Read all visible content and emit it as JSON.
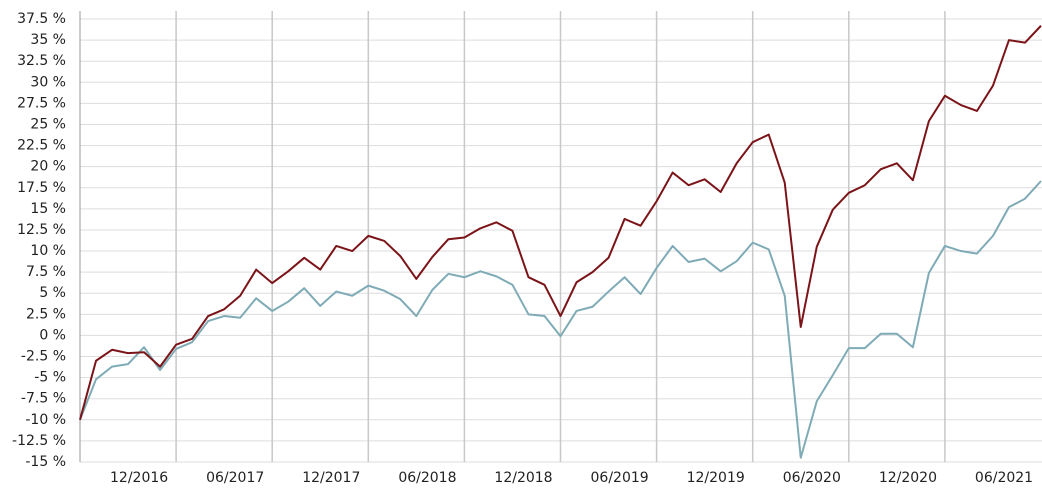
{
  "chart_data": {
    "type": "line",
    "x": [
      "06/2016",
      "07/2016",
      "08/2016",
      "09/2016",
      "10/2016",
      "11/2016",
      "12/2016",
      "01/2017",
      "02/2017",
      "03/2017",
      "04/2017",
      "05/2017",
      "06/2017",
      "07/2017",
      "08/2017",
      "09/2017",
      "10/2017",
      "11/2017",
      "12/2017",
      "01/2018",
      "02/2018",
      "03/2018",
      "04/2018",
      "05/2018",
      "06/2018",
      "07/2018",
      "08/2018",
      "09/2018",
      "10/2018",
      "11/2018",
      "12/2018",
      "01/2019",
      "02/2019",
      "03/2019",
      "04/2019",
      "05/2019",
      "06/2019",
      "07/2019",
      "08/2019",
      "09/2019",
      "10/2019",
      "11/2019",
      "12/2019",
      "01/2020",
      "02/2020",
      "03/2020",
      "04/2020",
      "05/2020",
      "06/2020",
      "07/2020",
      "08/2020",
      "09/2020",
      "10/2020",
      "11/2020",
      "12/2020",
      "01/2021",
      "02/2021",
      "03/2021",
      "04/2021",
      "05/2021",
      "06/2021"
    ],
    "series": [
      {
        "color": "#7b1418",
        "values": [
          -10,
          -3,
          -1.7,
          -2.1,
          -2,
          -3.7,
          -1.1,
          -0.4,
          2.3,
          3.1,
          4.7,
          7.8,
          6.2,
          7.6,
          9.2,
          7.8,
          10.6,
          10,
          11.8,
          11.2,
          9.4,
          6.7,
          9.3,
          11.4,
          11.6,
          12.7,
          13.4,
          12.4,
          6.9,
          6,
          2.3,
          6.3,
          7.5,
          9.2,
          13.8,
          13,
          15.9,
          19.3,
          17.8,
          18.5,
          17,
          20.4,
          22.9,
          23.8,
          18.1,
          1,
          10.5,
          14.9,
          16.9,
          17.8,
          19.7,
          20.4,
          18.4,
          25.4,
          28.4,
          27.3,
          26.6,
          29.6,
          35,
          34.7,
          36.7
        ]
      },
      {
        "color": "#7fabb6",
        "values": [
          -10,
          -5.2,
          -3.7,
          -3.4,
          -1.4,
          -4.1,
          -1.6,
          -0.8,
          1.7,
          2.3,
          2.1,
          4.4,
          2.9,
          4,
          5.6,
          3.5,
          5.2,
          4.7,
          5.9,
          5.3,
          4.3,
          2.3,
          5.4,
          7.3,
          6.9,
          7.6,
          7,
          6,
          2.5,
          2.3,
          -0.1,
          2.9,
          3.4,
          5.2,
          6.9,
          4.9,
          8,
          10.6,
          8.7,
          9.1,
          7.6,
          8.8,
          11,
          10.2,
          4.7,
          -14.5,
          -7.8,
          -4.7,
          -1.5,
          -1.5,
          0.2,
          0.2,
          -1.4,
          7.4,
          10.6,
          10,
          9.7,
          11.8,
          15.2,
          16.2,
          18.3
        ]
      }
    ],
    "xticks": [
      "12/2016",
      "06/2017",
      "12/2017",
      "06/2018",
      "12/2018",
      "06/2019",
      "12/2019",
      "06/2020",
      "12/2020",
      "06/2021"
    ],
    "ylim": [
      -15,
      37.5
    ],
    "yticks": [
      {
        "value": 37.5,
        "label": "37.5 %"
      },
      {
        "value": 35,
        "label": "35 %"
      },
      {
        "value": 32.5,
        "label": "32.5 %"
      },
      {
        "value": 30,
        "label": "30 %"
      },
      {
        "value": 27.5,
        "label": "27.5 %"
      },
      {
        "value": 25,
        "label": "25 %"
      },
      {
        "value": 22.5,
        "label": "22.5 %"
      },
      {
        "value": 20,
        "label": "20 %"
      },
      {
        "value": 17.5,
        "label": "17.5 %"
      },
      {
        "value": 15,
        "label": "15 %"
      },
      {
        "value": 12.5,
        "label": "12.5 %"
      },
      {
        "value": 10,
        "label": "10 %"
      },
      {
        "value": 7.5,
        "label": "7.5 %"
      },
      {
        "value": 5,
        "label": "5 %"
      },
      {
        "value": 2.5,
        "label": "2.5 %"
      },
      {
        "value": 0,
        "label": "0 %"
      },
      {
        "value": -2.5,
        "label": "-2.5 %"
      },
      {
        "value": -5,
        "label": "-5 %"
      },
      {
        "value": -7.5,
        "label": "-7.5 %"
      },
      {
        "value": -10,
        "label": "-10 %"
      },
      {
        "value": -12.5,
        "label": "-12.5 %"
      },
      {
        "value": -15,
        "label": "-15 %"
      }
    ],
    "grid": true
  }
}
